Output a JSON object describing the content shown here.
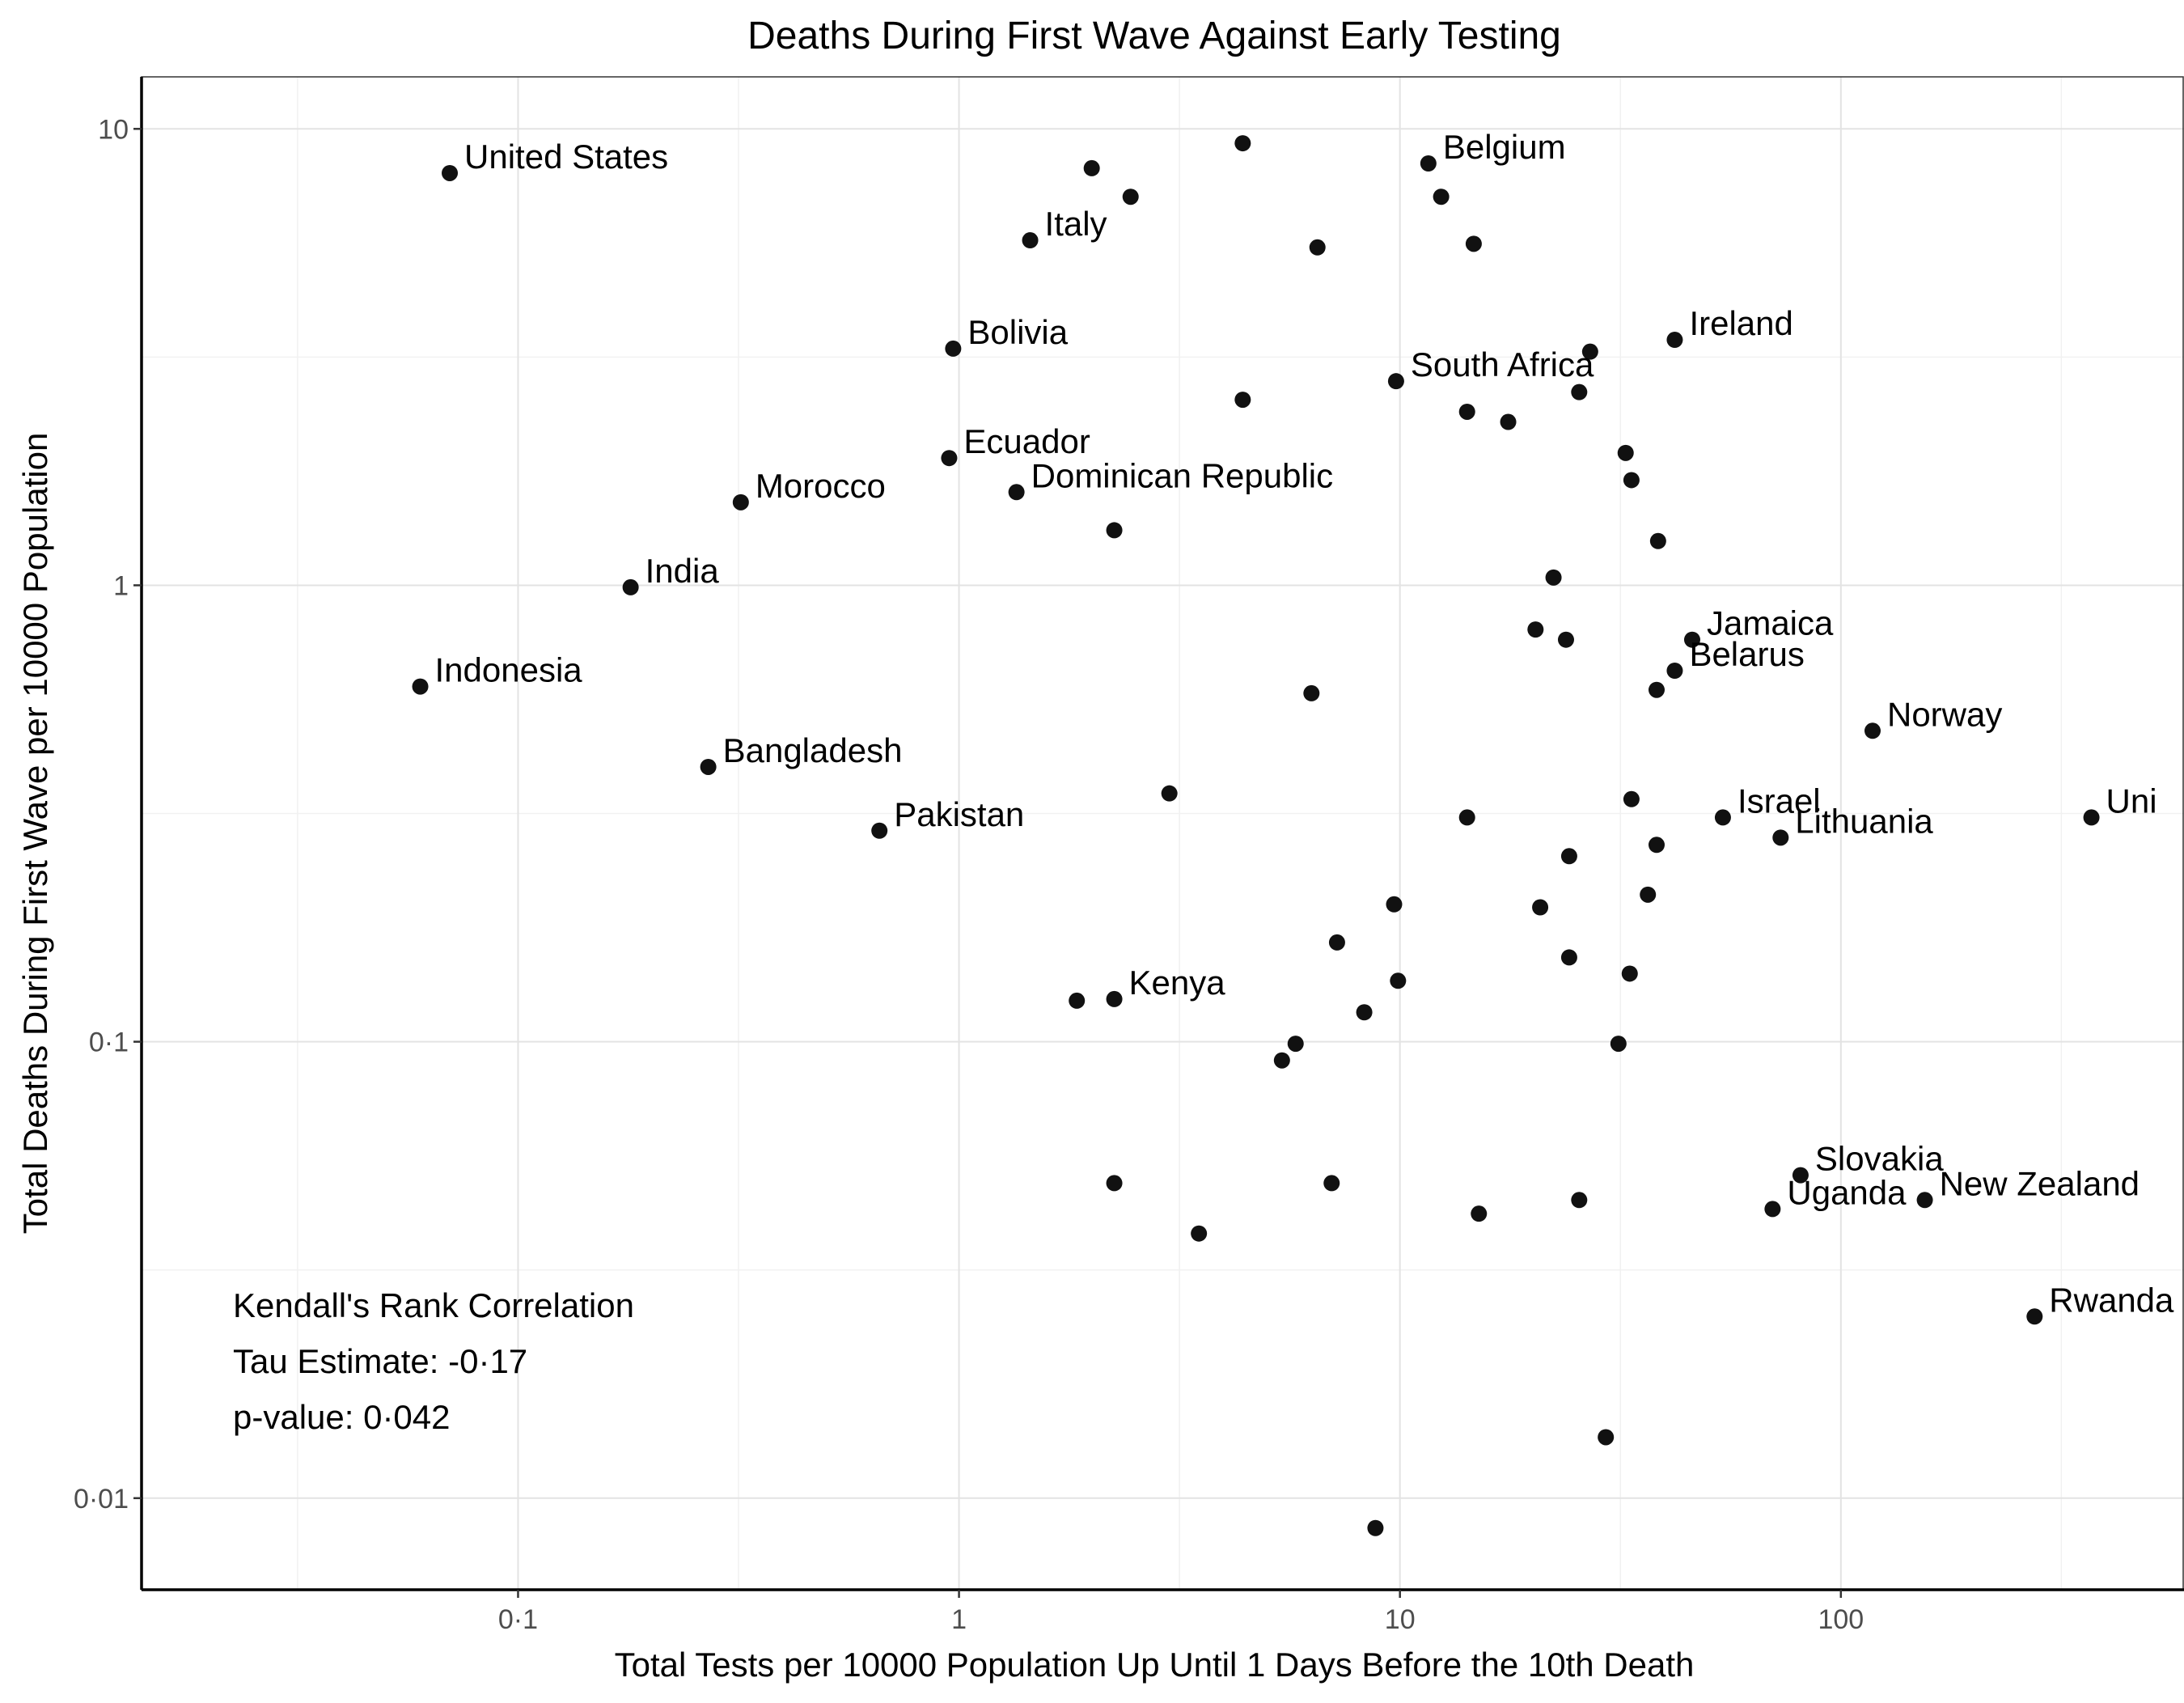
{
  "chart_data": {
    "type": "scatter",
    "title": "Deaths During First Wave Against Early Testing",
    "xlabel": "Total Tests per 10000 Population Up Until 1 Days Before the 10th Death",
    "ylabel": "Total Deaths During First Wave per 10000 Population",
    "x_scale": "log10",
    "y_scale": "log10",
    "xlim": [
      0.014,
      600
    ],
    "ylim": [
      0.0063,
      13
    ],
    "x_ticks": [
      {
        "value": 0.1,
        "label": "0·1"
      },
      {
        "value": 1,
        "label": "1"
      },
      {
        "value": 10,
        "label": "10"
      },
      {
        "value": 100,
        "label": "100"
      }
    ],
    "y_ticks": [
      {
        "value": 0.01,
        "label": "0·01"
      },
      {
        "value": 0.1,
        "label": "0·1"
      },
      {
        "value": 1,
        "label": "1"
      },
      {
        "value": 10,
        "label": "10"
      }
    ],
    "grid": true,
    "annotation": {
      "line1": "Kendall's Rank Correlation",
      "line2": "Tau Estimate: -0·17",
      "line3": "p-value: 0·042"
    },
    "points": [
      {
        "x": 0.07,
        "y": 8.0,
        "label": "United States"
      },
      {
        "x": 1.45,
        "y": 5.7,
        "label": "Italy"
      },
      {
        "x": 11.6,
        "y": 8.4,
        "label": "Belgium"
      },
      {
        "x": 0.97,
        "y": 3.3,
        "label": "Bolivia"
      },
      {
        "x": 42,
        "y": 3.45,
        "label": "Ireland"
      },
      {
        "x": 9.8,
        "y": 2.8,
        "label": "South Africa"
      },
      {
        "x": 0.95,
        "y": 1.9,
        "label": "Ecuador"
      },
      {
        "x": 0.32,
        "y": 1.52,
        "label": "Morocco"
      },
      {
        "x": 1.35,
        "y": 1.6,
        "label": "Dominican Republic"
      },
      {
        "x": 0.18,
        "y": 0.99,
        "label": "India"
      },
      {
        "x": 0.06,
        "y": 0.6,
        "label": "Indonesia"
      },
      {
        "x": 46,
        "y": 0.76,
        "label": "Jamaica"
      },
      {
        "x": 42,
        "y": 0.65,
        "label": "Belarus"
      },
      {
        "x": 118,
        "y": 0.48,
        "label": "Norway"
      },
      {
        "x": 0.27,
        "y": 0.4,
        "label": "Bangladesh"
      },
      {
        "x": 0.66,
        "y": 0.29,
        "label": "Pakistan"
      },
      {
        "x": 54,
        "y": 0.31,
        "label": "Israel"
      },
      {
        "x": 73,
        "y": 0.28,
        "label": "Lithuania"
      },
      {
        "x": 370,
        "y": 0.31,
        "label": "Uni"
      },
      {
        "x": 1.85,
        "y": 0.123,
        "label": ""
      },
      {
        "x": 2.25,
        "y": 0.124,
        "label": "Kenya"
      },
      {
        "x": 81,
        "y": 0.051,
        "label": "Slovakia"
      },
      {
        "x": 70,
        "y": 0.043,
        "label": "Uganda"
      },
      {
        "x": 155,
        "y": 0.045,
        "label": "New Zealand"
      },
      {
        "x": 275,
        "y": 0.025,
        "label": "Rwanda"
      },
      {
        "x": 2.0,
        "y": 8.2,
        "label": ""
      },
      {
        "x": 2.45,
        "y": 7.1,
        "label": ""
      },
      {
        "x": 4.4,
        "y": 9.3,
        "label": ""
      },
      {
        "x": 6.5,
        "y": 5.5,
        "label": ""
      },
      {
        "x": 12.4,
        "y": 7.1,
        "label": ""
      },
      {
        "x": 14.7,
        "y": 5.6,
        "label": ""
      },
      {
        "x": 27,
        "y": 3.25,
        "label": ""
      },
      {
        "x": 4.4,
        "y": 2.55,
        "label": ""
      },
      {
        "x": 14.2,
        "y": 2.4,
        "label": ""
      },
      {
        "x": 17.6,
        "y": 2.28,
        "label": ""
      },
      {
        "x": 25.5,
        "y": 2.65,
        "label": ""
      },
      {
        "x": 32.5,
        "y": 1.95,
        "label": ""
      },
      {
        "x": 33.5,
        "y": 1.7,
        "label": ""
      },
      {
        "x": 2.25,
        "y": 1.32,
        "label": ""
      },
      {
        "x": 38.5,
        "y": 1.25,
        "label": ""
      },
      {
        "x": 22.3,
        "y": 1.04,
        "label": ""
      },
      {
        "x": 20.3,
        "y": 0.8,
        "label": ""
      },
      {
        "x": 23.8,
        "y": 0.76,
        "label": ""
      },
      {
        "x": 6.3,
        "y": 0.58,
        "label": ""
      },
      {
        "x": 38.2,
        "y": 0.59,
        "label": ""
      },
      {
        "x": 3.0,
        "y": 0.35,
        "label": ""
      },
      {
        "x": 14.2,
        "y": 0.31,
        "label": ""
      },
      {
        "x": 33.5,
        "y": 0.34,
        "label": ""
      },
      {
        "x": 38.2,
        "y": 0.27,
        "label": ""
      },
      {
        "x": 24.2,
        "y": 0.255,
        "label": ""
      },
      {
        "x": 36.5,
        "y": 0.21,
        "label": ""
      },
      {
        "x": 9.7,
        "y": 0.2,
        "label": ""
      },
      {
        "x": 20.8,
        "y": 0.197,
        "label": ""
      },
      {
        "x": 7.2,
        "y": 0.165,
        "label": ""
      },
      {
        "x": 24.2,
        "y": 0.153,
        "label": ""
      },
      {
        "x": 33.2,
        "y": 0.141,
        "label": ""
      },
      {
        "x": 9.9,
        "y": 0.136,
        "label": ""
      },
      {
        "x": 8.3,
        "y": 0.116,
        "label": ""
      },
      {
        "x": 5.8,
        "y": 0.099,
        "label": ""
      },
      {
        "x": 5.4,
        "y": 0.091,
        "label": ""
      },
      {
        "x": 31.3,
        "y": 0.099,
        "label": ""
      },
      {
        "x": 2.25,
        "y": 0.049,
        "label": ""
      },
      {
        "x": 7.0,
        "y": 0.049,
        "label": ""
      },
      {
        "x": 25.5,
        "y": 0.045,
        "label": ""
      },
      {
        "x": 15.1,
        "y": 0.042,
        "label": ""
      },
      {
        "x": 3.5,
        "y": 0.038,
        "label": ""
      },
      {
        "x": 29.3,
        "y": 0.0136,
        "label": ""
      },
      {
        "x": 8.8,
        "y": 0.0086,
        "label": ""
      }
    ]
  }
}
